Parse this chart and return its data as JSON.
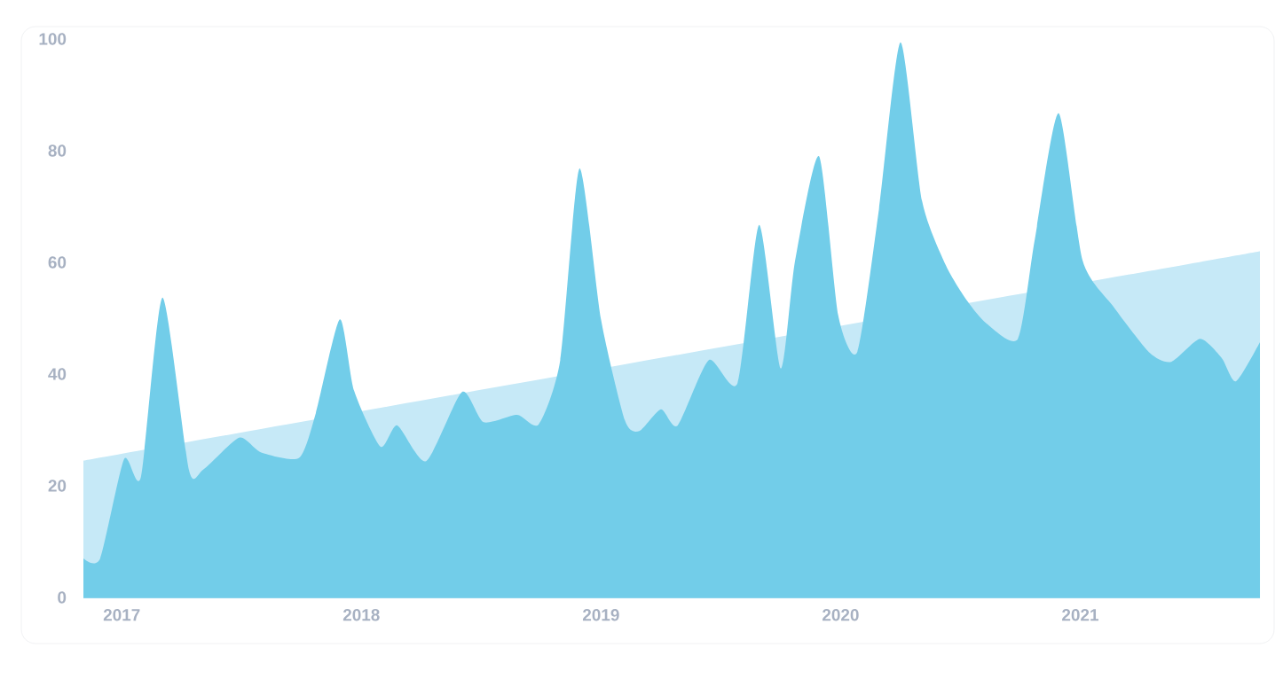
{
  "chart_data": {
    "type": "area",
    "xlim": [
      2016.84,
      2021.75
    ],
    "ylim": [
      0,
      100
    ],
    "xticks": [
      2017,
      2018,
      2019,
      2020,
      2021
    ],
    "yticks": [
      0,
      20,
      40,
      60,
      80,
      100
    ],
    "grid": false,
    "series": [
      {
        "color": "#c6e9f7",
        "x": [
          2016.84,
          2021.75
        ],
        "values": [
          24.5,
          62
        ]
      },
      {
        "color": "#72cde9",
        "x": [
          2016.84,
          2016.91,
          2017.01,
          2017.08,
          2017.17,
          2017.28,
          2017.34,
          2017.49,
          2017.58,
          2017.74,
          2017.81,
          2017.91,
          2017.97,
          2018.08,
          2018.15,
          2018.27,
          2018.42,
          2018.51,
          2018.65,
          2018.74,
          2018.83,
          2018.91,
          2019.0,
          2019.1,
          2019.16,
          2019.25,
          2019.32,
          2019.45,
          2019.57,
          2019.66,
          2019.75,
          2019.81,
          2019.91,
          2019.99,
          2020.07,
          2020.16,
          2020.25,
          2020.34,
          2020.44,
          2020.53,
          2020.61,
          2020.74,
          2020.81,
          2020.91,
          2021.01,
          2021.14,
          2021.29,
          2021.38,
          2021.5,
          2021.59,
          2021.65,
          2021.75
        ],
        "values": [
          7,
          7,
          24.8,
          21.6,
          53.7,
          22.9,
          22.9,
          28.6,
          26,
          25,
          33,
          49.8,
          37,
          27,
          30.8,
          24.4,
          36.8,
          31.4,
          32.7,
          31,
          42.5,
          76.8,
          49.8,
          31.7,
          29.8,
          33.7,
          30.8,
          42.5,
          38.4,
          66.7,
          41,
          60.3,
          79,
          50.5,
          44,
          69.5,
          99.4,
          71,
          59.4,
          53,
          49,
          46.3,
          64,
          86.7,
          60.3,
          52,
          43.8,
          42.2,
          46.3,
          42.9,
          38.7,
          45.7
        ]
      }
    ]
  }
}
